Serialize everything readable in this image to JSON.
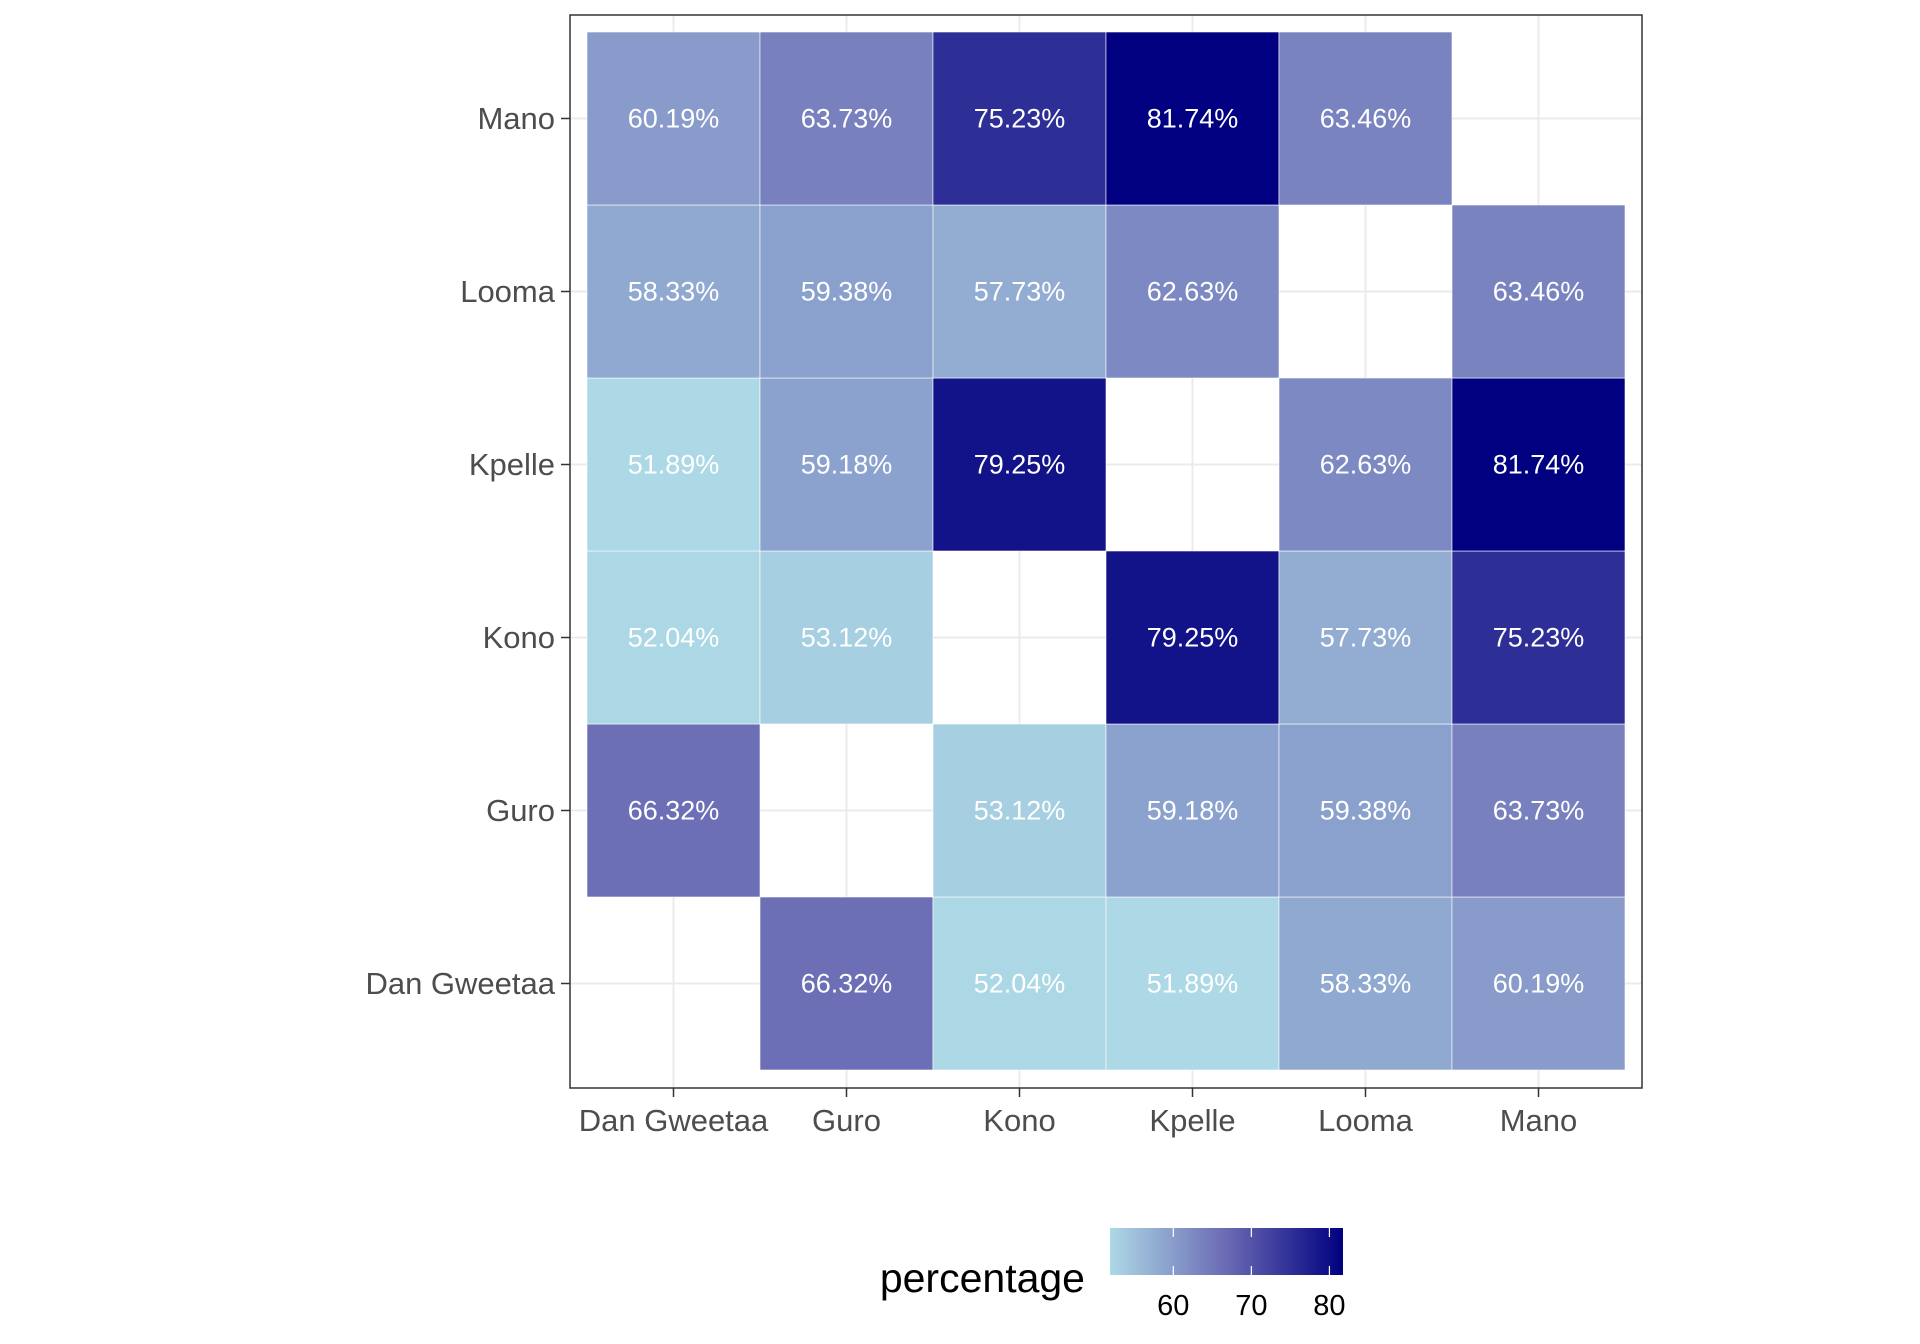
{
  "chart_data": {
    "type": "heatmap",
    "title": "",
    "xlabel": "",
    "ylabel": "",
    "x_categories": [
      "Dan Gweetaa",
      "Guro",
      "Kono",
      "Kpelle",
      "Looma",
      "Mano"
    ],
    "y_categories": [
      "Dan Gweetaa",
      "Guro",
      "Kono",
      "Kpelle",
      "Looma",
      "Mano"
    ],
    "cells": [
      {
        "x": "Dan Gweetaa",
        "y": "Guro",
        "value": 66.32,
        "label": "66.32%"
      },
      {
        "x": "Dan Gweetaa",
        "y": "Kono",
        "value": 52.04,
        "label": "52.04%"
      },
      {
        "x": "Dan Gweetaa",
        "y": "Kpelle",
        "value": 51.89,
        "label": "51.89%"
      },
      {
        "x": "Dan Gweetaa",
        "y": "Looma",
        "value": 58.33,
        "label": "58.33%"
      },
      {
        "x": "Dan Gweetaa",
        "y": "Mano",
        "value": 60.19,
        "label": "60.19%"
      },
      {
        "x": "Guro",
        "y": "Dan Gweetaa",
        "value": 66.32,
        "label": "66.32%"
      },
      {
        "x": "Guro",
        "y": "Kono",
        "value": 53.12,
        "label": "53.12%"
      },
      {
        "x": "Guro",
        "y": "Kpelle",
        "value": 59.18,
        "label": "59.18%"
      },
      {
        "x": "Guro",
        "y": "Looma",
        "value": 59.38,
        "label": "59.38%"
      },
      {
        "x": "Guro",
        "y": "Mano",
        "value": 63.73,
        "label": "63.73%"
      },
      {
        "x": "Kono",
        "y": "Dan Gweetaa",
        "value": 52.04,
        "label": "52.04%"
      },
      {
        "x": "Kono",
        "y": "Guro",
        "value": 53.12,
        "label": "53.12%"
      },
      {
        "x": "Kono",
        "y": "Kpelle",
        "value": 79.25,
        "label": "79.25%"
      },
      {
        "x": "Kono",
        "y": "Looma",
        "value": 57.73,
        "label": "57.73%"
      },
      {
        "x": "Kono",
        "y": "Mano",
        "value": 75.23,
        "label": "75.23%"
      },
      {
        "x": "Kpelle",
        "y": "Dan Gweetaa",
        "value": 51.89,
        "label": "51.89%"
      },
      {
        "x": "Kpelle",
        "y": "Guro",
        "value": 59.18,
        "label": "59.18%"
      },
      {
        "x": "Kpelle",
        "y": "Kono",
        "value": 79.25,
        "label": "79.25%"
      },
      {
        "x": "Kpelle",
        "y": "Looma",
        "value": 62.63,
        "label": "62.63%"
      },
      {
        "x": "Kpelle",
        "y": "Mano",
        "value": 81.74,
        "label": "81.74%"
      },
      {
        "x": "Looma",
        "y": "Dan Gweetaa",
        "value": 58.33,
        "label": "58.33%"
      },
      {
        "x": "Looma",
        "y": "Guro",
        "value": 59.38,
        "label": "59.38%"
      },
      {
        "x": "Looma",
        "y": "Kono",
        "value": 57.73,
        "label": "57.73%"
      },
      {
        "x": "Looma",
        "y": "Kpelle",
        "value": 62.63,
        "label": "62.63%"
      },
      {
        "x": "Looma",
        "y": "Mano",
        "value": 63.46,
        "label": "63.46%"
      },
      {
        "x": "Mano",
        "y": "Dan Gweetaa",
        "value": 60.19,
        "label": "60.19%"
      },
      {
        "x": "Mano",
        "y": "Guro",
        "value": 63.73,
        "label": "63.73%"
      },
      {
        "x": "Mano",
        "y": "Kono",
        "value": 75.23,
        "label": "75.23%"
      },
      {
        "x": "Mano",
        "y": "Kpelle",
        "value": 81.74,
        "label": "81.74%"
      },
      {
        "x": "Mano",
        "y": "Looma",
        "value": 63.46,
        "label": "63.46%"
      }
    ],
    "color_scale": {
      "low": 51.89,
      "high": 81.74,
      "low_color": "#add8e6",
      "mid_color": "#6a6ab4",
      "high_color": "#000080"
    },
    "legend": {
      "title": "percentage",
      "position": "bottom",
      "ticks": [
        60,
        70,
        80
      ]
    },
    "grid": true
  }
}
